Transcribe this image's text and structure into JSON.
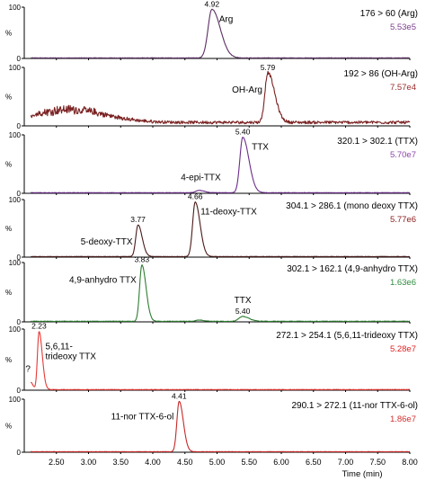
{
  "chart_data": {
    "type": "line",
    "xlabel": "Time (min)",
    "xlim": [
      2.0,
      8.0
    ],
    "x_ticks": [
      "2.50",
      "3.00",
      "3.50",
      "4.00",
      "4.50",
      "5.00",
      "5.50",
      "6.00",
      "6.50",
      "7.00",
      "7.50",
      "8.00"
    ],
    "ylim": [
      0,
      100
    ],
    "y_ticks": [
      "0",
      "100"
    ],
    "y_unit": "%",
    "panels": [
      {
        "transition": "176 > 60 (Arg)",
        "intensity": "5.53e5",
        "intensity_color": "#7b3f8c",
        "color": "#5a2d62",
        "baseline": 1,
        "noise": 0.4,
        "peaks": [
          {
            "rt": 4.92,
            "rt_label": "4.92",
            "label": "Arg",
            "height": 95,
            "width": 0.06,
            "tail": 0.07
          }
        ],
        "annotations": []
      },
      {
        "transition": "192 > 86 (OH-Arg)",
        "intensity": "7.57e4",
        "intensity_color": "#9a2a2a",
        "color": "#7a2020",
        "baseline": 6,
        "noise": 2.5,
        "hump": {
          "center": 2.7,
          "height": 22,
          "width": 0.55
        },
        "peaks": [
          {
            "rt": 5.79,
            "rt_label": "5.79",
            "label": "OH-Arg",
            "height": 85,
            "width": 0.045,
            "tail": 0.06
          }
        ],
        "annotations": []
      },
      {
        "transition": "320.1 > 302.1 (TTX)",
        "intensity": "5.70e7",
        "intensity_color": "#8e44ad",
        "color": "#6a2d8a",
        "baseline": 1,
        "noise": 0.3,
        "peaks": [
          {
            "rt": 5.4,
            "rt_label": "5.40",
            "label": "TTX",
            "height": 95,
            "width": 0.045,
            "tail": 0.05
          },
          {
            "rt": 4.72,
            "rt_label": "",
            "label": "4-epi-TTX",
            "height": 4,
            "width": 0.05,
            "tail": 0.03
          }
        ],
        "annotations": []
      },
      {
        "transition": "304.1 > 286.1 (mono deoxy TTX)",
        "intensity": "5.77e6",
        "intensity_color": "#8b1a1a",
        "color": "#4a1a1a",
        "baseline": 1,
        "noise": 0.3,
        "peaks": [
          {
            "rt": 3.77,
            "rt_label": "3.77",
            "label": "5-deoxy-TTX",
            "height": 55,
            "width": 0.035,
            "tail": 0.03
          },
          {
            "rt": 4.66,
            "rt_label": "4.66",
            "label": "11-deoxy-TTX",
            "height": 95,
            "width": 0.04,
            "tail": 0.035
          }
        ],
        "annotations": []
      },
      {
        "transition": "302.1 > 162.1 (4,9-anhydro TTX)",
        "intensity": "1.63e6",
        "intensity_color": "#2e8b3e",
        "color": "#2e7d32",
        "baseline": 1,
        "noise": 0.4,
        "peaks": [
          {
            "rt": 3.83,
            "rt_label": "3.83",
            "label": "4,9-anhydro TTX",
            "height": 95,
            "width": 0.035,
            "tail": 0.03
          },
          {
            "rt": 5.4,
            "rt_label": "5.40",
            "label": "TTX",
            "height": 8,
            "width": 0.06,
            "tail": 0.04
          },
          {
            "rt": 4.72,
            "rt_label": "",
            "label": "",
            "height": 2,
            "width": 0.05,
            "tail": 0.03
          }
        ],
        "annotations": []
      },
      {
        "transition": "272.1 > 254.1 (5,6,11-trideoxy TTX)",
        "intensity": "5.28e7",
        "intensity_color": "#e02020",
        "color": "#e53935",
        "baseline": 1,
        "noise": 0.3,
        "peaks": [
          {
            "rt": 2.23,
            "rt_label": "2.23",
            "label": "5,6,11-|trideoxy TTX",
            "height": 95,
            "width": 0.025,
            "tail": 0.025
          },
          {
            "rt": 2.1,
            "rt_label": "",
            "label": "?",
            "height": 12,
            "width": 0.02,
            "tail": 0.015
          }
        ],
        "annotations": []
      },
      {
        "transition": "290.1 > 272.1 (11-nor TTX-6-ol)",
        "intensity": "1.86e7",
        "intensity_color": "#d32f2f",
        "color": "#c62828",
        "baseline": 1,
        "noise": 0.25,
        "peaks": [
          {
            "rt": 4.41,
            "rt_label": "4.41",
            "label": "11-nor TTX-6-ol",
            "height": 95,
            "width": 0.035,
            "tail": 0.03
          }
        ],
        "annotations": []
      }
    ]
  }
}
